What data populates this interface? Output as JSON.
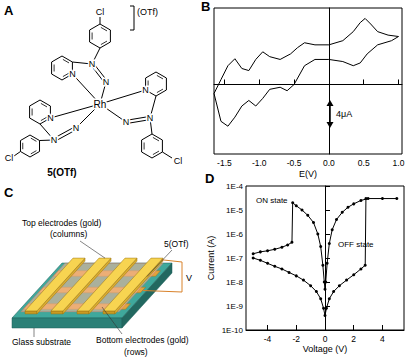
{
  "panels": {
    "A": {
      "label": "A",
      "metal": "Rh",
      "nitrogen": "N",
      "halogen": "Cl",
      "counterion": "(OTf)",
      "compound": "5(OTf)"
    },
    "C": {
      "label": "C",
      "top_electrodes": "Top electrodes (gold)",
      "columns": "(columns)",
      "film": "5(OTf)",
      "bottom_electrodes": "Bottom electrodes (gold)",
      "rows": "(rows)",
      "substrate": "Glass substrate",
      "voltage": "V"
    }
  },
  "chart_data": [
    {
      "type": "line",
      "title": "B",
      "x_label": "E(V)",
      "color": "#000000",
      "x": [
        -1.65,
        -1.55,
        -1.45,
        -1.35,
        -1.25,
        -1.15,
        -1.05,
        -0.95,
        -0.85,
        -0.7,
        -0.55,
        -0.45,
        -0.35,
        -0.2,
        0,
        0.2,
        0.35,
        0.45,
        0.52,
        0.6,
        0.7,
        0.85,
        1.0,
        0.9,
        0.7,
        0.55,
        0.45,
        0.35,
        0.2,
        0,
        -0.2,
        -0.35,
        -0.5,
        -0.6,
        -0.7,
        -0.85,
        -0.95,
        -1.05,
        -1.15,
        -1.25,
        -1.35,
        -1.45,
        -1.55,
        -1.65
      ],
      "values": [
        -1.3,
        0.7,
        2.7,
        3.7,
        2.3,
        2.0,
        3.6,
        4.7,
        4.0,
        3.6,
        4.4,
        5.3,
        6.0,
        5.7,
        5.7,
        6.3,
        7.6,
        8.9,
        9.5,
        8.7,
        7.6,
        7.1,
        6.9,
        6.3,
        5.7,
        4.4,
        3.1,
        2.7,
        3.3,
        3.6,
        3.6,
        2.7,
        0,
        -0.9,
        -0.4,
        -0.7,
        -2.0,
        -3.1,
        -2.3,
        -3.1,
        -4.7,
        -6.0,
        -5.3,
        -1.3
      ],
      "xlim": [
        -1.65,
        1.05
      ],
      "xticks": [
        -1.5,
        {
          "value": -1,
          "label": "-1.0"
        },
        -0.5,
        {
          "value": 0,
          "label": "0.0"
        },
        0.5,
        {
          "value": 1,
          "label": "1.0"
        }
      ],
      "ylim": [
        -10,
        11
      ],
      "tick_labels": "x",
      "scale_bar": {
        "value": 4,
        "label": "4μA"
      }
    },
    {
      "type": "line",
      "title": "D",
      "x_label": "Voltage (V)",
      "y_label": "Current (A)",
      "log": "y",
      "marker": "circle",
      "xlim": [
        -5.5,
        5.5
      ],
      "xticks": [
        -4,
        -2,
        0,
        2,
        4
      ],
      "ylim": [
        1e-10,
        0.0001
      ],
      "yticks": [
        {
          "value": 1e-10,
          "label": "1E-10"
        },
        {
          "value": 1e-09,
          "label": "1E-9"
        },
        {
          "value": 1e-08,
          "label": "1E-8"
        },
        {
          "value": 1e-07,
          "label": "1E-7"
        },
        {
          "value": 1e-06,
          "label": "1E-6"
        },
        {
          "value": 1e-05,
          "label": "1E-5"
        },
        {
          "value": 0.0001,
          "label": "1E-4"
        }
      ],
      "annotations": [
        "ON state",
        "OFF state"
      ],
      "series": [
        {
          "color": "#000000",
          "x": [
            -5,
            -4.5,
            -4,
            -3.5,
            -3,
            -2.6,
            -2.3,
            -2.25,
            -2,
            -1.6,
            -1.2,
            -0.8,
            -0.5,
            -0.3,
            -0.15,
            -0.05,
            0,
            0.05,
            0.15,
            0.3,
            0.5,
            0.8,
            1.2,
            1.6,
            2,
            2.5,
            3,
            4,
            5
          ],
          "values": [
            1.5e-07,
            1.8e-07,
            2e-07,
            2.3e-07,
            2.8e-07,
            3.5e-07,
            4.5e-07,
            2e-05,
            1.5e-05,
            1e-05,
            6e-06,
            3e-06,
            1e-06,
            3e-07,
            5e-08,
            1e-08,
            5e-09,
            1e-08,
            6e-08,
            4e-07,
            1.5e-06,
            4e-06,
            8e-06,
            1.3e-05,
            1.8e-05,
            2.5e-05,
            3e-05,
            3e-05,
            3e-05
          ]
        },
        {
          "color": "#000000",
          "x": [
            -5,
            -4.5,
            -4,
            -3.5,
            -3,
            -2.5,
            -2,
            -1.5,
            -1,
            -0.6,
            -0.3,
            -0.1,
            0,
            0.1,
            0.3,
            0.6,
            1,
            1.5,
            2,
            2.5,
            2.8,
            2.85
          ],
          "values": [
            1e-07,
            8e-08,
            6e-08,
            4.5e-08,
            3.5e-08,
            2.5e-08,
            1.8e-08,
            1.2e-08,
            7e-09,
            4e-09,
            2e-09,
            8e-10,
            4e-10,
            8e-10,
            2e-09,
            4e-09,
            7e-09,
            1.2e-08,
            2e-08,
            3.5e-08,
            5e-08,
            3e-05
          ]
        }
      ]
    }
  ]
}
